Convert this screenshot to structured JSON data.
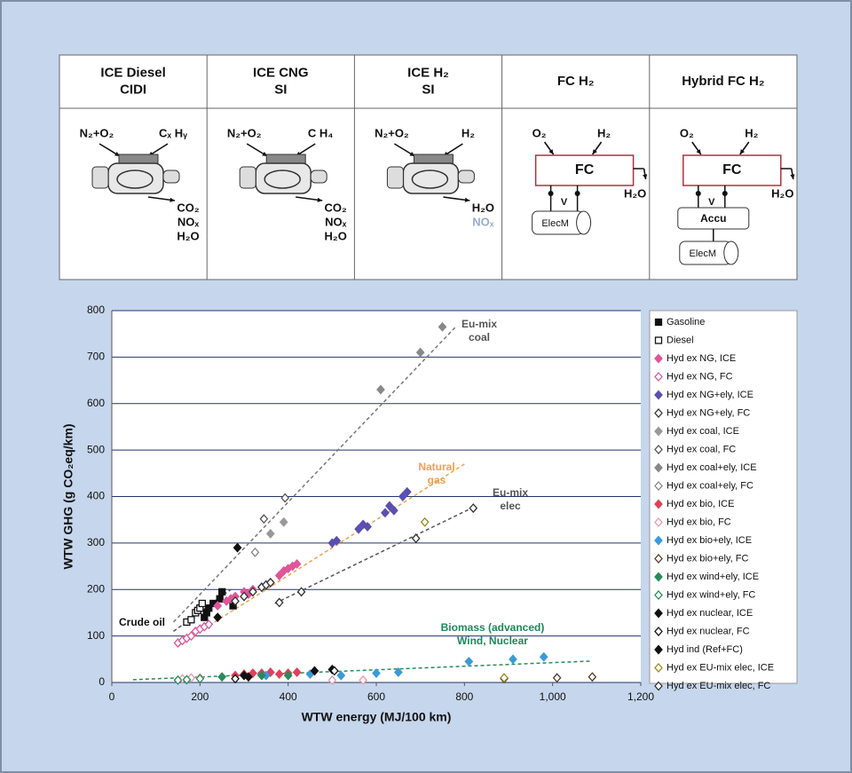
{
  "panel": {
    "powertrains": [
      {
        "title": [
          "ICE Diesel",
          "CIDI"
        ],
        "kind": "ice",
        "inputs": [
          "N₂+O₂",
          "Cₓ Hᵧ"
        ],
        "outputs": [
          {
            "text": "CO₂",
            "color": "#111111"
          },
          {
            "text": "NOₓ",
            "color": "#111111"
          },
          {
            "text": "H₂O",
            "color": "#111111"
          }
        ]
      },
      {
        "title": [
          "ICE CNG",
          "SI"
        ],
        "kind": "ice",
        "inputs": [
          "N₂+O₂",
          "C H₄"
        ],
        "outputs": [
          {
            "text": "CO₂",
            "color": "#111111"
          },
          {
            "text": "NOₓ",
            "color": "#111111"
          },
          {
            "text": "H₂O",
            "color": "#111111"
          }
        ]
      },
      {
        "title": [
          "ICE H₂",
          "SI"
        ],
        "kind": "ice",
        "inputs": [
          "N₂+O₂",
          "H₂"
        ],
        "outputs": [
          {
            "text": "H₂O",
            "color": "#111111"
          },
          {
            "text": "NOₓ",
            "color": "#9aaccc"
          }
        ]
      },
      {
        "title": [
          "FC H₂"
        ],
        "kind": "fc",
        "inputs": [
          "O₂",
          "H₂"
        ],
        "core": "FC",
        "outputs": [
          {
            "text": "H₂O",
            "color": "#111111"
          }
        ],
        "components": [
          "V",
          "ElecM"
        ]
      },
      {
        "title": [
          "Hybrid FC H₂"
        ],
        "kind": "hybrid",
        "inputs": [
          "O₂",
          "H₂"
        ],
        "core": "FC",
        "outputs": [
          {
            "text": "H₂O",
            "color": "#111111"
          }
        ],
        "components": [
          "V",
          "Accu",
          "ElecM"
        ]
      }
    ]
  },
  "chart_data": {
    "type": "scatter",
    "x_label": "WTW energy (MJ/100 km)",
    "y_label": "WTW GHG (g CO₂eq/km)",
    "xlim": [
      0,
      1200
    ],
    "ylim": [
      0,
      800
    ],
    "xticks": [
      0,
      200,
      400,
      600,
      800,
      {
        "value": 1000,
        "label": "1,000"
      },
      {
        "value": 1200,
        "label": "1,200"
      }
    ],
    "yticks": [
      0,
      100,
      200,
      300,
      400,
      500,
      600,
      700,
      800
    ],
    "grid": true,
    "legend": "right",
    "series": [
      {
        "name": "Gasoline",
        "color": "#111111",
        "marker": "square",
        "filled": true,
        "x": [
          210,
          215,
          220,
          230,
          245,
          250,
          275
        ],
        "y": [
          140,
          150,
          160,
          170,
          180,
          195,
          165
        ]
      },
      {
        "name": "Diesel",
        "color": "#111111",
        "marker": "square",
        "filled": false,
        "x": [
          170,
          180,
          190,
          195,
          200,
          205
        ],
        "y": [
          130,
          135,
          150,
          155,
          160,
          170
        ]
      },
      {
        "name": "Hyd ex NG, ICE",
        "color": "#e0559a",
        "marker": "diamond",
        "filled": true,
        "x": [
          240,
          260,
          270,
          280,
          300,
          310,
          320,
          340,
          360,
          380,
          390,
          400,
          410,
          420
        ],
        "y": [
          165,
          175,
          180,
          185,
          195,
          190,
          200,
          205,
          215,
          230,
          240,
          245,
          250,
          255
        ]
      },
      {
        "name": "Hyd ex NG, FC",
        "color": "#e0559a",
        "marker": "diamond",
        "filled": false,
        "x": [
          150,
          160,
          170,
          180,
          190,
          200,
          210,
          220
        ],
        "y": [
          85,
          90,
          95,
          100,
          110,
          115,
          120,
          125
        ]
      },
      {
        "name": "Hyd ex NG+ely, ICE",
        "color": "#5a4fb0",
        "marker": "diamond",
        "filled": true,
        "x": [
          500,
          510,
          560,
          570,
          580,
          620,
          630,
          640,
          660,
          670
        ],
        "y": [
          300,
          305,
          330,
          340,
          335,
          365,
          380,
          370,
          400,
          410
        ]
      },
      {
        "name": "Hyd ex NG+ely, FC",
        "color": "#333333",
        "marker": "diamond",
        "filled": false,
        "x": [
          280,
          300,
          320,
          340,
          350,
          360
        ],
        "y": [
          175,
          185,
          195,
          205,
          210,
          215
        ]
      },
      {
        "name": "Hyd ex coal, ICE",
        "color": "#999999",
        "marker": "diamond",
        "filled": true,
        "x": [
          360,
          390
        ],
        "y": [
          320,
          345
        ]
      },
      {
        "name": "Hyd ex coal, FC",
        "color": "#555555",
        "marker": "diamond",
        "filled": false,
        "x": [
          345,
          393
        ],
        "y": [
          352,
          397
        ]
      },
      {
        "name": "Hyd ex coal+ely, ICE",
        "color": "#888888",
        "marker": "diamond",
        "filled": true,
        "x": [
          610,
          700,
          750
        ],
        "y": [
          630,
          710,
          765
        ]
      },
      {
        "name": "Hyd ex coal+ely, FC",
        "color": "#888888",
        "marker": "diamond",
        "filled": false,
        "x": [
          325
        ],
        "y": [
          280
        ]
      },
      {
        "name": "Hyd ex bio, ICE",
        "color": "#e0405a",
        "marker": "diamond",
        "filled": true,
        "x": [
          280,
          300,
          320,
          340,
          360,
          380,
          400,
          420
        ],
        "y": [
          15,
          18,
          20,
          20,
          22,
          18,
          20,
          22
        ]
      },
      {
        "name": "Hyd ex bio, FC",
        "color": "#e89aaa",
        "marker": "diamond",
        "filled": false,
        "x": [
          160,
          180,
          200,
          500,
          570
        ],
        "y": [
          8,
          10,
          10,
          5,
          5
        ]
      },
      {
        "name": "Hyd ex bio+ely, ICE",
        "color": "#3a9ad9",
        "marker": "diamond",
        "filled": true,
        "x": [
          350,
          450,
          520,
          600,
          650,
          810,
          910,
          980
        ],
        "y": [
          15,
          18,
          15,
          20,
          22,
          45,
          50,
          55
        ]
      },
      {
        "name": "Hyd ex bio+ely, FC",
        "color": "#5a3a2a",
        "marker": "diamond",
        "filled": false,
        "x": [
          890,
          1010,
          1090
        ],
        "y": [
          8,
          10,
          12
        ]
      },
      {
        "name": "Hyd ex wind+ely, ICE",
        "color": "#2a8a5a",
        "marker": "diamond",
        "filled": true,
        "x": [
          250,
          340,
          400
        ],
        "y": [
          12,
          15,
          15
        ]
      },
      {
        "name": "Hyd ex wind+ely, FC",
        "color": "#2a8a5a",
        "marker": "diamond",
        "filled": false,
        "x": [
          150,
          170,
          200
        ],
        "y": [
          5,
          6,
          8
        ]
      },
      {
        "name": "Hyd ex nuclear, ICE",
        "color": "#111111",
        "marker": "diamond",
        "filled": true,
        "x": [
          300,
          310,
          460,
          500
        ],
        "y": [
          15,
          12,
          25,
          28
        ]
      },
      {
        "name": "Hyd ex nuclear, FC",
        "color": "#111111",
        "marker": "diamond",
        "filled": false,
        "x": [
          280,
          505
        ],
        "y": [
          8,
          25
        ]
      },
      {
        "name": "Hyd ind (Ref+FC)",
        "color": "#111111",
        "marker": "diamond",
        "filled": true,
        "x": [
          285,
          240
        ],
        "y": [
          290,
          140
        ]
      },
      {
        "name": "Hyd ex EU-mix elec, ICE",
        "color": "#9a8a20",
        "marker": "diamond",
        "filled": false,
        "x": [
          710,
          890
        ],
        "y": [
          345,
          10
        ]
      },
      {
        "name": "Hyd ex EU-mix elec, FC",
        "color": "#333333",
        "marker": "diamond",
        "filled": false,
        "x": [
          380,
          430,
          690,
          820
        ],
        "y": [
          172,
          195,
          310,
          375
        ]
      }
    ],
    "trendlines": [
      {
        "label": [
          "Eu-mix",
          "coal"
        ],
        "color": "#777777",
        "label_color": "#555555",
        "x": [
          140,
          780
        ],
        "y": [
          130,
          765
        ]
      },
      {
        "label": [
          "Natural",
          "gas"
        ],
        "color": "#f0a050",
        "label_color": "#f0a050",
        "x": [
          150,
          800
        ],
        "y": [
          80,
          470
        ]
      },
      {
        "label": [
          "Eu-mix",
          "elec"
        ],
        "color": "#555555",
        "label_color": "#555555",
        "x": [
          370,
          827
        ],
        "y": [
          170,
          380
        ]
      },
      {
        "label": [
          "Biomass (advanced)",
          "Wind, Nuclear"
        ],
        "color": "#2a8a5a",
        "label_color": "#1a8a5a",
        "x": [
          48,
          1087
        ],
        "y": [
          6,
          46
        ]
      },
      {
        "label": [
          "Crude oil"
        ],
        "color": "#555555",
        "label_color": "#111111",
        "x": [
          140,
          270
        ],
        "y": [
          110,
          200
        ]
      }
    ]
  }
}
